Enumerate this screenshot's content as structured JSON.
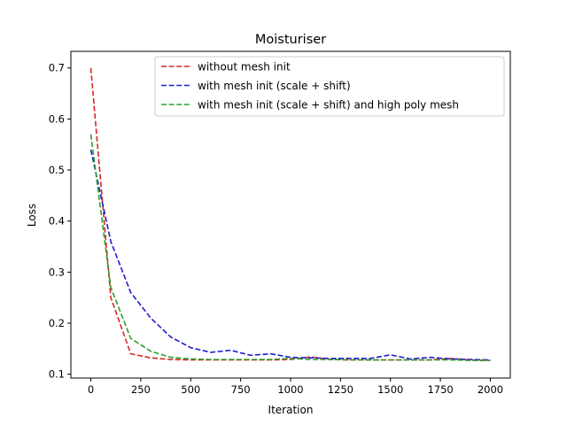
{
  "chart_data": {
    "type": "line",
    "title": "Moisturiser",
    "xlabel": "Iteration",
    "ylabel": "Loss",
    "xlim": [
      -100,
      2100
    ],
    "ylim": [
      0.0925,
      0.7325
    ],
    "xticks": [
      0,
      250,
      500,
      750,
      1000,
      1250,
      1500,
      1750,
      2000
    ],
    "yticks": [
      0.1,
      0.2,
      0.3,
      0.4,
      0.5,
      0.6,
      0.7
    ],
    "grid": false,
    "legend_position": "top-right",
    "series": [
      {
        "name": "without mesh init",
        "color": "#d62728",
        "line_style": "dashed",
        "x": [
          0,
          100,
          200,
          300,
          400,
          500,
          600,
          700,
          800,
          900,
          1000,
          1100,
          1200,
          1300,
          1400,
          1500,
          1600,
          1700,
          1800,
          1900,
          2000
        ],
        "y": [
          0.7,
          0.25,
          0.14,
          0.132,
          0.129,
          0.128,
          0.128,
          0.128,
          0.128,
          0.128,
          0.129,
          0.134,
          0.129,
          0.128,
          0.128,
          0.128,
          0.128,
          0.128,
          0.131,
          0.128,
          0.127
        ]
      },
      {
        "name": "with mesh init (scale + shift)",
        "color": "#1f1fcf",
        "line_style": "dashed",
        "x": [
          0,
          100,
          200,
          300,
          400,
          500,
          600,
          700,
          800,
          900,
          1000,
          1100,
          1200,
          1300,
          1400,
          1500,
          1600,
          1700,
          1800,
          1900,
          2000
        ],
        "y": [
          0.54,
          0.36,
          0.26,
          0.21,
          0.173,
          0.152,
          0.143,
          0.147,
          0.137,
          0.14,
          0.133,
          0.132,
          0.131,
          0.131,
          0.131,
          0.138,
          0.13,
          0.133,
          0.13,
          0.129,
          0.128
        ]
      },
      {
        "name": "with mesh init (scale + shift) and high poly mesh",
        "color": "#2ca02c",
        "line_style": "dashed",
        "x": [
          0,
          100,
          200,
          300,
          400,
          500,
          600,
          700,
          800,
          900,
          1000,
          1100,
          1200,
          1300,
          1400,
          1500,
          1600,
          1700,
          1800,
          1900,
          2000
        ],
        "y": [
          0.57,
          0.27,
          0.17,
          0.145,
          0.133,
          0.13,
          0.129,
          0.129,
          0.129,
          0.129,
          0.131,
          0.129,
          0.129,
          0.128,
          0.128,
          0.128,
          0.128,
          0.128,
          0.128,
          0.127,
          0.127
        ]
      }
    ]
  }
}
